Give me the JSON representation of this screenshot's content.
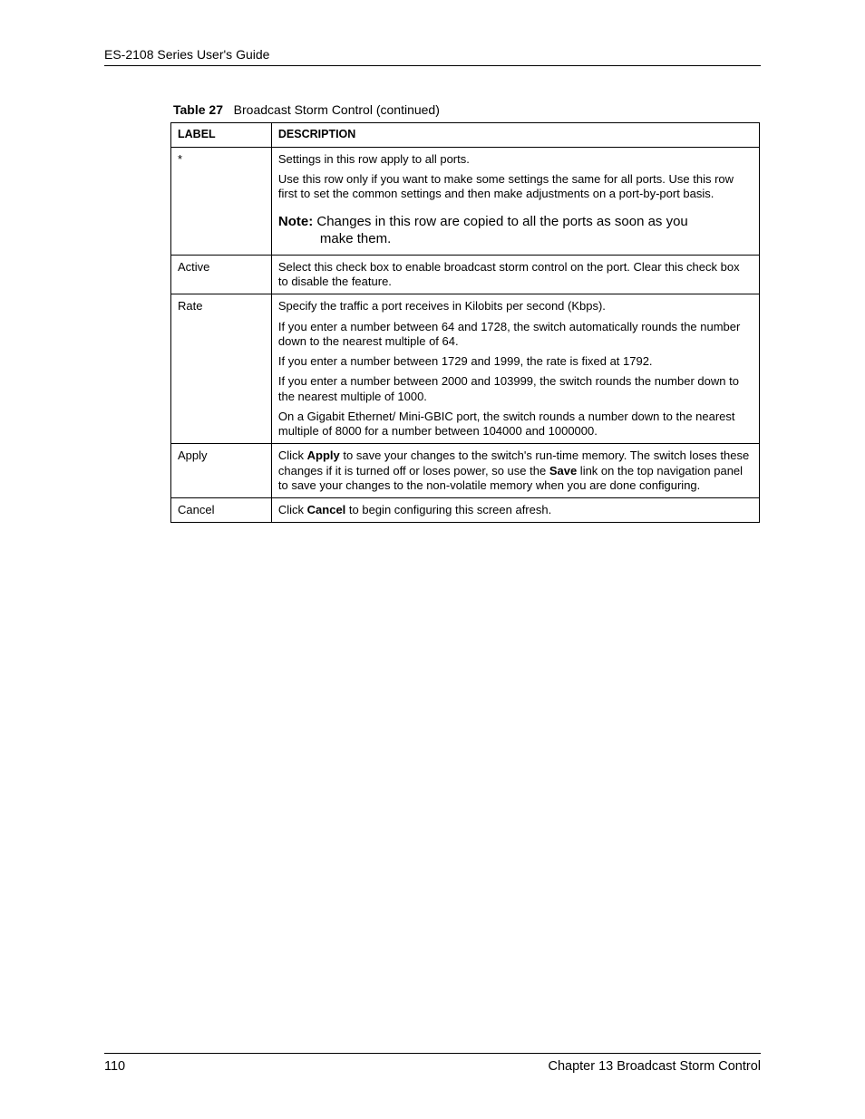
{
  "header": {
    "running_head": "ES-2108 Series User's Guide"
  },
  "caption": {
    "label": "Table 27",
    "title": "Broadcast Storm Control  (continued)"
  },
  "table": {
    "head": {
      "col1": "LABEL",
      "col2": "DESCRIPTION"
    },
    "rows": [
      {
        "label": "*",
        "desc": {
          "p1": "Settings in this row apply to all ports.",
          "p2": "Use this row only if you want to make some settings the same for all ports. Use this row first to set the common settings and then make adjustments on a port-by-port basis.",
          "note_label": "Note:",
          "note_text1": " Changes in this row are copied to all the ports as soon as you",
          "note_text2": "make them."
        }
      },
      {
        "label": "Active",
        "desc": {
          "p1": "Select this check box to enable broadcast storm control on the port. Clear this check box to disable the feature."
        }
      },
      {
        "label": "Rate",
        "desc": {
          "p1": "Specify the traffic a port receives in Kilobits per second (Kbps).",
          "p2": "If you enter a number between 64 and 1728, the switch automatically rounds the number down to the nearest multiple of 64.",
          "p3": "If you enter a number between 1729 and 1999, the rate is fixed at 1792.",
          "p4": "If you enter a number between 2000 and 103999, the switch rounds the number down to the nearest multiple of 1000.",
          "p5": "On a Gigabit Ethernet/ Mini-GBIC port, the switch rounds a number down to the nearest multiple of 8000 for a number between 104000 and 1000000."
        }
      },
      {
        "label": "Apply",
        "desc": {
          "pre1": "Click ",
          "b1": "Apply",
          "mid1": " to save your changes to the switch's run-time memory. The switch loses these changes if it is turned off or loses power, so use the ",
          "b2": "Save",
          "post1": " link on the top navigation panel to save your changes to the non-volatile memory when you are done configuring."
        }
      },
      {
        "label": "Cancel",
        "desc": {
          "pre1": "Click ",
          "b1": "Cancel",
          "post1": " to begin configuring this screen afresh."
        }
      }
    ]
  },
  "footer": {
    "page_number": "110",
    "chapter": "Chapter 13 Broadcast Storm Control"
  }
}
